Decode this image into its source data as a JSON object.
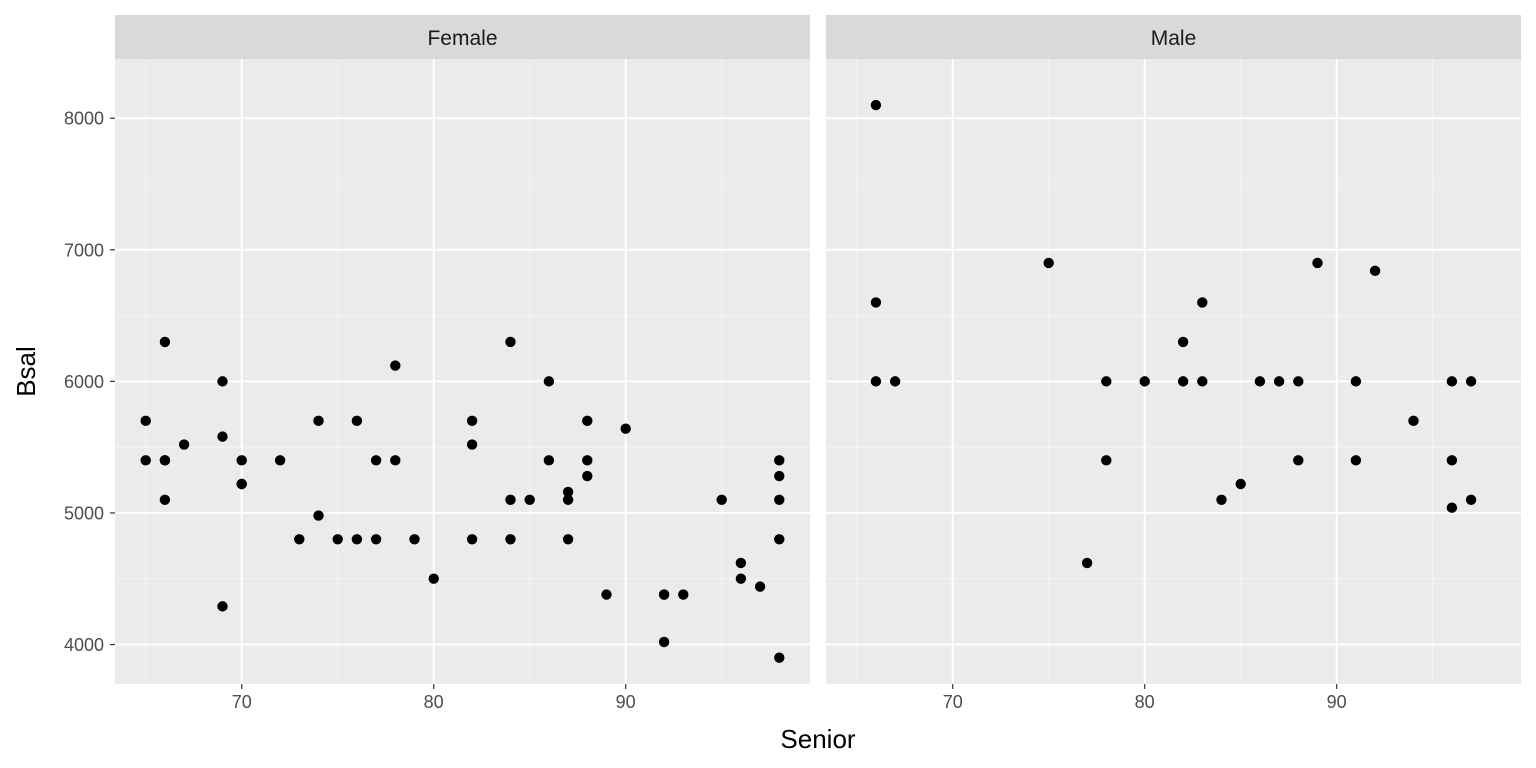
{
  "chart_data": {
    "type": "scatter",
    "facet_by": "Sex",
    "xlabel": "Senior",
    "ylabel": "Bsal",
    "xlim": [
      63.4,
      99.6
    ],
    "ylim": [
      3700,
      8450
    ],
    "x_ticks": [
      70,
      80,
      90
    ],
    "x_minor": [
      65,
      75,
      85,
      95
    ],
    "y_ticks": [
      4000,
      5000,
      6000,
      7000,
      8000
    ],
    "y_minor": [
      4500,
      5500,
      6500,
      7500
    ],
    "panels": [
      {
        "name": "Female",
        "points": [
          [
            65,
            5700
          ],
          [
            65,
            5400
          ],
          [
            66,
            6300
          ],
          [
            66,
            5400
          ],
          [
            66,
            5400
          ],
          [
            66,
            5100
          ],
          [
            67,
            5520
          ],
          [
            69,
            6000
          ],
          [
            69,
            5580
          ],
          [
            69,
            4290
          ],
          [
            70,
            5400
          ],
          [
            70,
            5220
          ],
          [
            70,
            5220
          ],
          [
            72,
            5400
          ],
          [
            73,
            4800
          ],
          [
            74,
            5700
          ],
          [
            74,
            4980
          ],
          [
            75,
            4800
          ],
          [
            76,
            5700
          ],
          [
            76,
            4800
          ],
          [
            77,
            5400
          ],
          [
            77,
            4800
          ],
          [
            78,
            6120
          ],
          [
            78,
            5400
          ],
          [
            79,
            4800
          ],
          [
            80,
            4500
          ],
          [
            82,
            5700
          ],
          [
            82,
            5520
          ],
          [
            82,
            4800
          ],
          [
            84,
            6300
          ],
          [
            84,
            5100
          ],
          [
            84,
            4800
          ],
          [
            85,
            5100
          ],
          [
            86,
            6000
          ],
          [
            86,
            5400
          ],
          [
            87,
            5160
          ],
          [
            87,
            5100
          ],
          [
            87,
            4800
          ],
          [
            88,
            5700
          ],
          [
            88,
            5400
          ],
          [
            88,
            5280
          ],
          [
            89,
            4380
          ],
          [
            90,
            5640
          ],
          [
            92,
            4380
          ],
          [
            92,
            4380
          ],
          [
            92,
            4020
          ],
          [
            93,
            4380
          ],
          [
            95,
            5100
          ],
          [
            96,
            4620
          ],
          [
            96,
            4500
          ],
          [
            97,
            4440
          ],
          [
            98,
            5400
          ],
          [
            98,
            5280
          ],
          [
            98,
            5100
          ],
          [
            98,
            4800
          ],
          [
            98,
            3900
          ]
        ]
      },
      {
        "name": "Male",
        "points": [
          [
            66,
            8100
          ],
          [
            66,
            6600
          ],
          [
            66,
            6000
          ],
          [
            67,
            6000
          ],
          [
            75,
            6900
          ],
          [
            77,
            4620
          ],
          [
            78,
            6000
          ],
          [
            78,
            5400
          ],
          [
            80,
            6000
          ],
          [
            82,
            6300
          ],
          [
            82,
            6000
          ],
          [
            83,
            6600
          ],
          [
            83,
            6000
          ],
          [
            84,
            5100
          ],
          [
            85,
            5220
          ],
          [
            86,
            6000
          ],
          [
            87,
            6000
          ],
          [
            88,
            6000
          ],
          [
            88,
            5400
          ],
          [
            89,
            6900
          ],
          [
            91,
            6000
          ],
          [
            91,
            5400
          ],
          [
            92,
            6840
          ],
          [
            94,
            5700
          ],
          [
            96,
            6000
          ],
          [
            96,
            5400
          ],
          [
            96,
            5040
          ],
          [
            97,
            6000
          ],
          [
            97,
            5100
          ]
        ]
      }
    ]
  }
}
